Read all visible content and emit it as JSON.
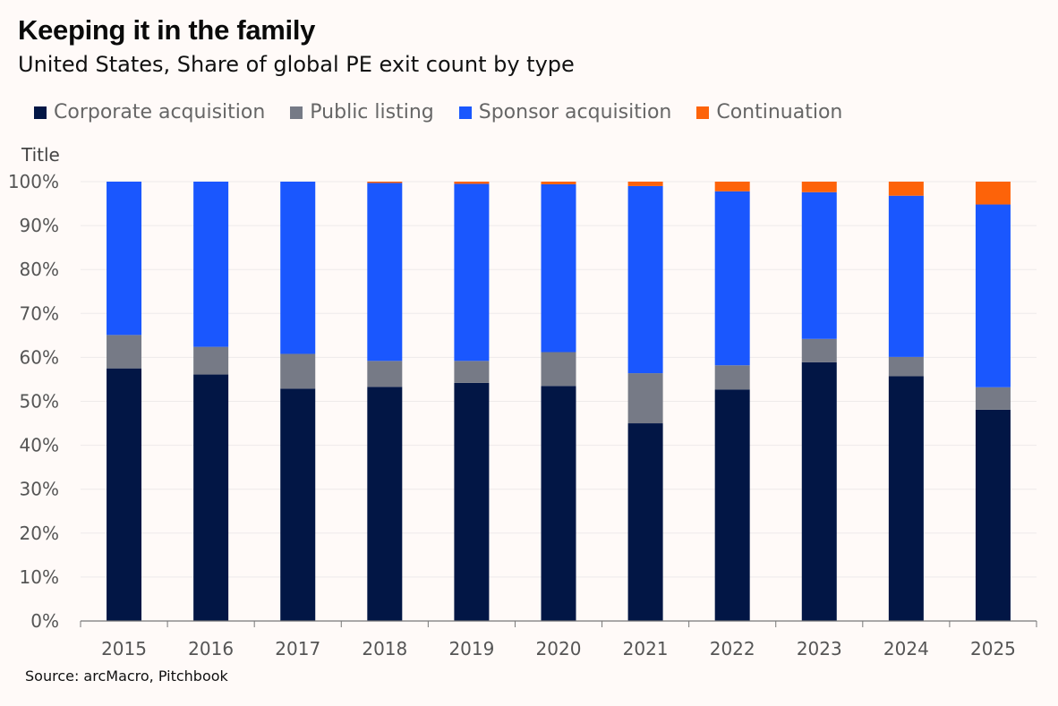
{
  "header": {
    "title": "Keeping it in the family",
    "subtitle": "United States, Share of global PE exit count by type"
  },
  "source": "Source: arcMacro, Pitchbook",
  "chart_data": {
    "type": "bar",
    "stacked": true,
    "ylabel": "Title",
    "ylim": [
      0,
      100
    ],
    "y_ticks": [
      "0%",
      "10%",
      "20%",
      "30%",
      "40%",
      "50%",
      "60%",
      "70%",
      "80%",
      "90%",
      "100%"
    ],
    "categories": [
      "2015",
      "2016",
      "2017",
      "2018",
      "2019",
      "2020",
      "2021",
      "2022",
      "2023",
      "2024",
      "2025"
    ],
    "grid": true,
    "legend_position": "top-left",
    "series": [
      {
        "name": "Corporate acquisition",
        "color": "#021645",
        "values": [
          57.5,
          56.1,
          52.9,
          53.3,
          54.2,
          53.5,
          45.0,
          52.7,
          58.9,
          55.7,
          48.1
        ]
      },
      {
        "name": "Public listing",
        "color": "#767a86",
        "values": [
          7.6,
          6.3,
          7.9,
          5.9,
          5.0,
          7.7,
          11.4,
          5.5,
          5.3,
          4.4,
          5.1
        ]
      },
      {
        "name": "Sponsor acquisition",
        "color": "#1a57fe",
        "values": [
          34.9,
          37.6,
          39.2,
          40.5,
          40.3,
          38.2,
          42.6,
          39.6,
          33.4,
          36.7,
          41.6
        ]
      },
      {
        "name": "Continuation",
        "color": "#fd6309",
        "values": [
          0.0,
          0.0,
          0.0,
          0.3,
          0.5,
          0.6,
          1.0,
          2.2,
          2.4,
          3.2,
          5.2
        ]
      }
    ]
  }
}
